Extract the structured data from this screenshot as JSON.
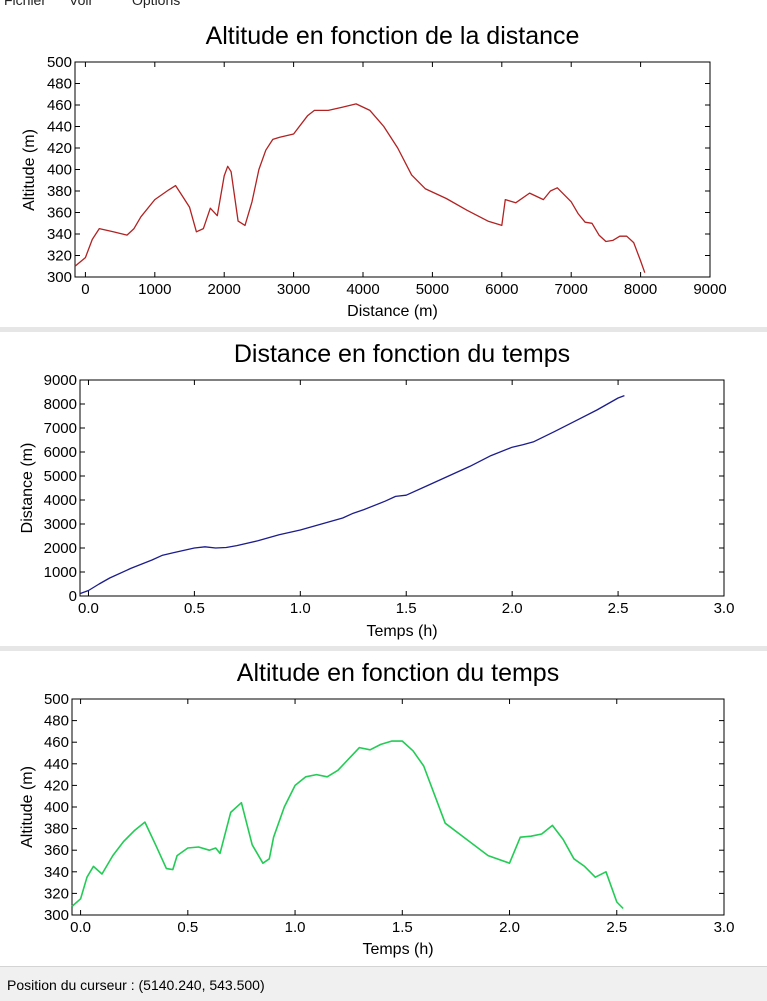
{
  "menu": {
    "items": [
      "Fichier",
      "Voir",
      "Options"
    ]
  },
  "status_bar": {
    "label": "Position du curseur :",
    "value": "(5140.240, 543.500)"
  },
  "colors": {
    "series_1": "#b22222",
    "series_2": "#1c1c8c",
    "series_3": "#22cc55",
    "panel_separator": "#e6e6e6"
  },
  "chart_data": [
    {
      "type": "line",
      "title": "Altitude en fonction de la distance",
      "xlabel": "Distance (m)",
      "ylabel": "Altitude (m)",
      "xlim": [
        -150,
        9000
      ],
      "ylim": [
        300,
        500
      ],
      "xticks": [
        0,
        1000,
        2000,
        3000,
        4000,
        5000,
        6000,
        7000,
        8000,
        9000
      ],
      "xtick_labels": [
        "0",
        "1000",
        "2000",
        "3000",
        "4000",
        "5000",
        "6000",
        "7000",
        "8000",
        "9000"
      ],
      "yticks": [
        300,
        320,
        340,
        360,
        380,
        400,
        420,
        440,
        460,
        480,
        500
      ],
      "ytick_labels": [
        "300",
        "320",
        "340",
        "360",
        "380",
        "400",
        "420",
        "440",
        "460",
        "480",
        "500"
      ],
      "grid": false,
      "series": [
        {
          "x": [
            -150,
            0,
            100,
            200,
            400,
            600,
            700,
            800,
            1000,
            1200,
            1300,
            1400,
            1500,
            1600,
            1700,
            1800,
            1900,
            2000,
            2050,
            2100,
            2200,
            2300,
            2400,
            2500,
            2600,
            2700,
            2800,
            3000,
            3200,
            3300,
            3500,
            3700,
            3900,
            4100,
            4300,
            4500,
            4700,
            4900,
            5200,
            5500,
            5800,
            6000,
            6050,
            6200,
            6400,
            6600,
            6700,
            6800,
            7000,
            7100,
            7200,
            7300,
            7400,
            7500,
            7600,
            7700,
            7800,
            7900,
            8000,
            8060
          ],
          "y": [
            310,
            318,
            335,
            345,
            342,
            339,
            345,
            356,
            372,
            381,
            385,
            375,
            365,
            342,
            345,
            364,
            357,
            394,
            403,
            398,
            352,
            348,
            370,
            400,
            418,
            428,
            430,
            433,
            450,
            455,
            455,
            458,
            461,
            455,
            440,
            420,
            395,
            382,
            373,
            362,
            352,
            348,
            372,
            369,
            378,
            372,
            380,
            383,
            370,
            359,
            351,
            350,
            339,
            333,
            334,
            338,
            338,
            332,
            315,
            304
          ]
        }
      ]
    },
    {
      "type": "line",
      "title": "Distance en fonction du temps",
      "xlabel": "Temps (h)",
      "ylabel": "Distance (m)",
      "xlim": [
        -0.04,
        3.0
      ],
      "ylim": [
        0,
        9000
      ],
      "xticks": [
        0.0,
        0.5,
        1.0,
        1.5,
        2.0,
        2.5,
        3.0
      ],
      "xtick_labels": [
        "0.0",
        "0.5",
        "1.0",
        "1.5",
        "2.0",
        "2.5",
        "3.0"
      ],
      "yticks": [
        0,
        1000,
        2000,
        3000,
        4000,
        5000,
        6000,
        7000,
        8000,
        9000
      ],
      "ytick_labels": [
        "0",
        "1000",
        "2000",
        "3000",
        "4000",
        "5000",
        "6000",
        "7000",
        "8000",
        "9000"
      ],
      "grid": false,
      "series": [
        {
          "x": [
            -0.04,
            0.0,
            0.05,
            0.1,
            0.2,
            0.3,
            0.35,
            0.4,
            0.5,
            0.55,
            0.6,
            0.65,
            0.7,
            0.8,
            0.9,
            1.0,
            1.1,
            1.2,
            1.25,
            1.3,
            1.4,
            1.45,
            1.5,
            1.6,
            1.7,
            1.8,
            1.9,
            2.0,
            2.05,
            2.1,
            2.2,
            2.3,
            2.4,
            2.5,
            2.53
          ],
          "y": [
            100,
            230,
            500,
            750,
            1150,
            1500,
            1700,
            1800,
            2000,
            2050,
            2000,
            2020,
            2100,
            2300,
            2550,
            2750,
            3000,
            3250,
            3450,
            3600,
            3950,
            4150,
            4200,
            4600,
            5000,
            5400,
            5850,
            6200,
            6300,
            6420,
            6850,
            7300,
            7750,
            8250,
            8350
          ]
        }
      ]
    },
    {
      "type": "line",
      "title": "Altitude en fonction du temps",
      "xlabel": "Temps (h)",
      "ylabel": "Altitude (m)",
      "xlim": [
        -0.04,
        3.0
      ],
      "ylim": [
        300,
        500
      ],
      "xticks": [
        0.0,
        0.5,
        1.0,
        1.5,
        2.0,
        2.5,
        3.0
      ],
      "xtick_labels": [
        "0.0",
        "0.5",
        "1.0",
        "1.5",
        "2.0",
        "2.5",
        "3.0"
      ],
      "yticks": [
        300,
        320,
        340,
        360,
        380,
        400,
        420,
        440,
        460,
        480,
        500
      ],
      "ytick_labels": [
        "300",
        "320",
        "340",
        "360",
        "380",
        "400",
        "420",
        "440",
        "460",
        "480",
        "500"
      ],
      "grid": false,
      "series": [
        {
          "x": [
            -0.04,
            0.0,
            0.03,
            0.06,
            0.1,
            0.15,
            0.2,
            0.25,
            0.3,
            0.35,
            0.4,
            0.43,
            0.45,
            0.5,
            0.55,
            0.6,
            0.63,
            0.65,
            0.7,
            0.75,
            0.8,
            0.85,
            0.88,
            0.9,
            0.95,
            1.0,
            1.05,
            1.1,
            1.15,
            1.2,
            1.3,
            1.35,
            1.4,
            1.45,
            1.5,
            1.55,
            1.6,
            1.7,
            1.8,
            1.9,
            2.0,
            2.05,
            2.1,
            2.15,
            2.2,
            2.25,
            2.3,
            2.35,
            2.4,
            2.45,
            2.5,
            2.53
          ],
          "y": [
            308,
            315,
            335,
            345,
            338,
            355,
            368,
            378,
            386,
            365,
            343,
            342,
            355,
            362,
            363,
            360,
            362,
            357,
            395,
            404,
            365,
            348,
            352,
            372,
            400,
            420,
            428,
            430,
            428,
            434,
            455,
            453,
            458,
            461,
            461,
            452,
            438,
            385,
            370,
            355,
            348,
            372,
            373,
            375,
            383,
            370,
            352,
            345,
            335,
            340,
            312,
            306
          ]
        }
      ]
    }
  ]
}
